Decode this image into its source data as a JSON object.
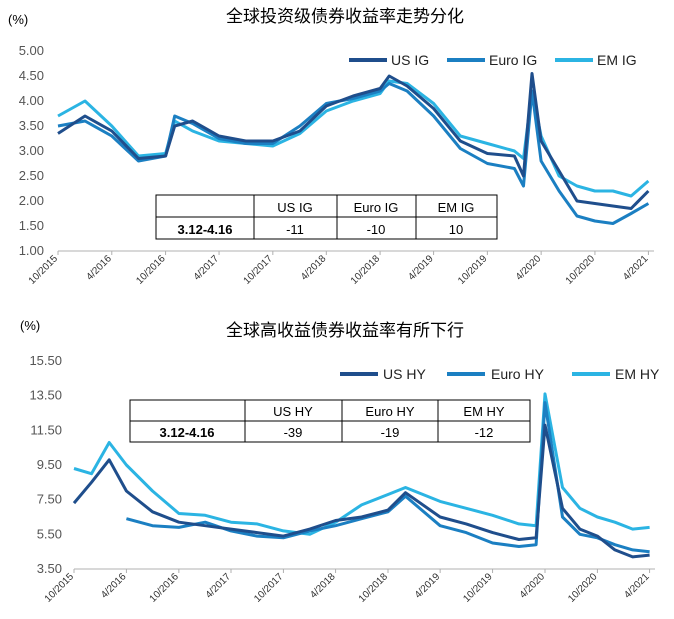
{
  "colors": {
    "us": "#1F4E8C",
    "euro": "#1B7FC2",
    "em": "#2BB4E3",
    "axis": "#b0b0b0"
  },
  "chart_data": [
    {
      "type": "line",
      "title": "全球投资级债券收益率走势分化",
      "unit_label": "(%)",
      "yticks": [
        "5.00",
        "4.50",
        "4.00",
        "3.50",
        "3.00",
        "2.50",
        "2.00",
        "1.50",
        "1.00"
      ],
      "ylim": [
        1.0,
        5.0
      ],
      "xticks": [
        "10/2015",
        "4/2016",
        "10/2016",
        "4/2017",
        "10/2017",
        "4/2018",
        "10/2018",
        "4/2019",
        "10/2019",
        "4/2020",
        "10/2020",
        "4/2021"
      ],
      "x": [
        "2015-10",
        "2016-01",
        "2016-04",
        "2016-07",
        "2016-10",
        "2016-11",
        "2017-01",
        "2017-04",
        "2017-07",
        "2017-10",
        "2018-01",
        "2018-04",
        "2018-07",
        "2018-10",
        "2018-11",
        "2019-01",
        "2019-04",
        "2019-07",
        "2019-10",
        "2020-01",
        "2020-02",
        "2020-03",
        "2020-04",
        "2020-06",
        "2020-08",
        "2020-10",
        "2020-12",
        "2021-02",
        "2021-04"
      ],
      "series": [
        {
          "name": "US IG",
          "color_key": "us",
          "values": [
            3.35,
            3.7,
            3.4,
            2.85,
            2.9,
            3.5,
            3.6,
            3.3,
            3.2,
            3.2,
            3.4,
            3.9,
            4.1,
            4.25,
            4.5,
            4.3,
            3.85,
            3.2,
            2.95,
            2.9,
            2.5,
            4.55,
            3.2,
            2.6,
            2.0,
            1.95,
            1.9,
            1.85,
            2.2
          ]
        },
        {
          "name": "Euro IG",
          "color_key": "euro",
          "values": [
            3.5,
            3.6,
            3.3,
            2.8,
            2.9,
            3.7,
            3.55,
            3.25,
            3.15,
            3.15,
            3.5,
            3.95,
            4.05,
            4.2,
            4.35,
            4.2,
            3.7,
            3.05,
            2.75,
            2.65,
            2.3,
            4.2,
            2.8,
            2.2,
            1.7,
            1.6,
            1.55,
            1.75,
            1.95
          ]
        },
        {
          "name": "EM IG",
          "color_key": "em",
          "values": [
            3.7,
            4.0,
            3.5,
            2.9,
            2.95,
            3.6,
            3.4,
            3.2,
            3.15,
            3.1,
            3.35,
            3.8,
            4.0,
            4.15,
            4.4,
            4.35,
            3.95,
            3.3,
            3.15,
            3.0,
            2.85,
            4.2,
            3.3,
            2.5,
            2.3,
            2.2,
            2.2,
            2.1,
            2.4
          ]
        }
      ],
      "table": {
        "headers": [
          "",
          "US IG",
          "Euro IG",
          "EM IG"
        ],
        "rows": [
          [
            "3.12-4.16",
            "-11",
            "-10",
            "10"
          ]
        ]
      }
    },
    {
      "type": "line",
      "title": "全球高收益债券收益率有所下行",
      "unit_label": "(%)",
      "yticks": [
        "15.50",
        "13.50",
        "11.50",
        "9.50",
        "7.50",
        "5.50",
        "3.50"
      ],
      "ylim": [
        3.5,
        15.5
      ],
      "xticks": [
        "10/2015",
        "4/2016",
        "10/2016",
        "4/2017",
        "10/2017",
        "4/2018",
        "10/2018",
        "4/2019",
        "10/2019",
        "4/2020",
        "10/2020",
        "4/2021"
      ],
      "x": [
        "2015-10",
        "2015-12",
        "2016-02",
        "2016-04",
        "2016-07",
        "2016-10",
        "2017-01",
        "2017-04",
        "2017-07",
        "2017-10",
        "2018-01",
        "2018-04",
        "2018-07",
        "2018-10",
        "2018-12",
        "2019-04",
        "2019-07",
        "2019-10",
        "2020-01",
        "2020-03",
        "2020-04",
        "2020-06",
        "2020-08",
        "2020-10",
        "2020-12",
        "2021-02",
        "2021-04"
      ],
      "series": [
        {
          "name": "US HY",
          "color_key": "us",
          "values": [
            7.3,
            8.5,
            9.8,
            8.0,
            6.8,
            6.2,
            6.0,
            5.8,
            5.6,
            5.4,
            5.8,
            6.3,
            6.5,
            6.9,
            7.9,
            6.5,
            6.1,
            5.6,
            5.2,
            5.3,
            11.8,
            7.0,
            5.8,
            5.4,
            4.6,
            4.2,
            4.3
          ]
        },
        {
          "name": "Euro HY",
          "color_key": "euro",
          "values": [
            null,
            null,
            null,
            6.4,
            6.0,
            5.9,
            6.2,
            5.7,
            5.4,
            5.3,
            5.7,
            6.0,
            6.4,
            6.8,
            7.7,
            6.0,
            5.6,
            5.0,
            4.8,
            4.9,
            13.1,
            6.5,
            5.5,
            5.3,
            4.9,
            4.6,
            4.5
          ]
        },
        {
          "name": "EM HY",
          "color_key": "em",
          "values": [
            9.3,
            9.0,
            10.8,
            9.5,
            8.0,
            6.7,
            6.6,
            6.2,
            6.1,
            5.7,
            5.5,
            6.2,
            7.2,
            7.8,
            8.2,
            7.4,
            7.0,
            6.6,
            6.1,
            6.0,
            13.6,
            8.2,
            7.0,
            6.5,
            6.2,
            5.8,
            5.9
          ]
        }
      ],
      "table": {
        "headers": [
          "",
          "US HY",
          "Euro HY",
          "EM HY"
        ],
        "rows": [
          [
            "3.12-4.16",
            "-39",
            "-19",
            "-12"
          ]
        ]
      }
    }
  ]
}
